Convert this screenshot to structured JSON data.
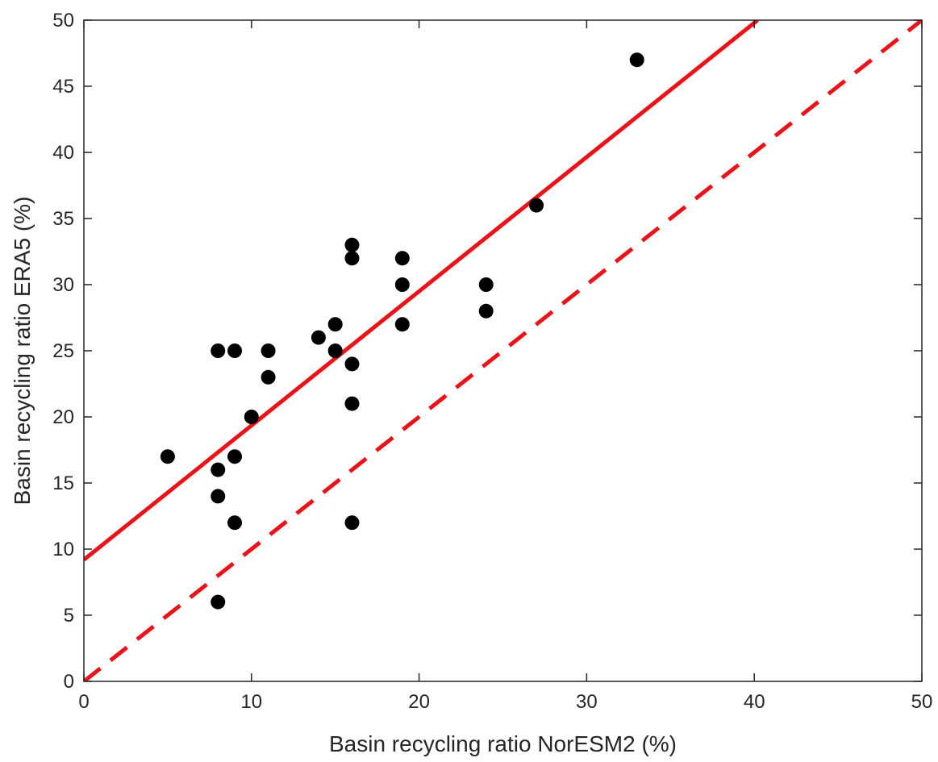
{
  "chart_data": {
    "type": "scatter",
    "title": "",
    "xlabel": "Basin recycling ratio NorESM2 (%)",
    "ylabel": "Basin recycling ratio ERA5 (%)",
    "xlim": [
      0,
      50
    ],
    "ylim": [
      0,
      50
    ],
    "xticks": [
      0,
      10,
      20,
      30,
      40,
      50
    ],
    "yticks": [
      0,
      5,
      10,
      15,
      20,
      25,
      30,
      35,
      40,
      45,
      50
    ],
    "grid": false,
    "legend": false,
    "series": [
      {
        "kind": "points",
        "color": "#000000",
        "points": [
          [
            5,
            17
          ],
          [
            8,
            25
          ],
          [
            8,
            16
          ],
          [
            8,
            14
          ],
          [
            8,
            6
          ],
          [
            9,
            25
          ],
          [
            9,
            17
          ],
          [
            9,
            12
          ],
          [
            10,
            20
          ],
          [
            11,
            25
          ],
          [
            11,
            23
          ],
          [
            14,
            26
          ],
          [
            15,
            27
          ],
          [
            15,
            25
          ],
          [
            16,
            33
          ],
          [
            16,
            32
          ],
          [
            16,
            24
          ],
          [
            16,
            21
          ],
          [
            16,
            12
          ],
          [
            19,
            32
          ],
          [
            19,
            30
          ],
          [
            19,
            27
          ],
          [
            24,
            30
          ],
          [
            24,
            28
          ],
          [
            27,
            36
          ],
          [
            33,
            47
          ]
        ]
      },
      {
        "kind": "fit-line",
        "style": "solid",
        "color": "#e8141a",
        "x": [
          0,
          40.2
        ],
        "y": [
          9.2,
          50
        ]
      },
      {
        "kind": "one-to-one-line",
        "style": "dashed",
        "color": "#e8141a",
        "x": [
          0,
          50
        ],
        "y": [
          0,
          50
        ]
      }
    ]
  }
}
